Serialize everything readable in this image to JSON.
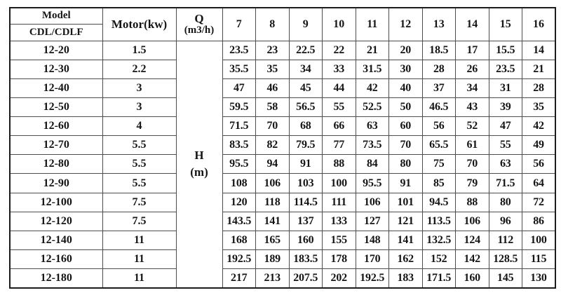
{
  "table": {
    "header": {
      "model_label": "Model",
      "model_series_label": "CDL/CDLF",
      "motor_label": "Motor(kw)",
      "q_unit_line1": "Q",
      "q_unit_line2": "(m3/h)",
      "flow_columns": [
        "7",
        "8",
        "9",
        "10",
        "11",
        "12",
        "13",
        "14",
        "15",
        "16"
      ]
    },
    "head_unit": {
      "line1": "H",
      "line2": "(m)"
    },
    "rows": [
      {
        "model": "12-20",
        "motor": "1.5",
        "heads": [
          "23.5",
          "23",
          "22.5",
          "22",
          "21",
          "20",
          "18.5",
          "17",
          "15.5",
          "14"
        ]
      },
      {
        "model": "12-30",
        "motor": "2.2",
        "heads": [
          "35.5",
          "35",
          "34",
          "33",
          "31.5",
          "30",
          "28",
          "26",
          "23.5",
          "21"
        ]
      },
      {
        "model": "12-40",
        "motor": "3",
        "heads": [
          "47",
          "46",
          "45",
          "44",
          "42",
          "40",
          "37",
          "34",
          "31",
          "28"
        ]
      },
      {
        "model": "12-50",
        "motor": "3",
        "heads": [
          "59.5",
          "58",
          "56.5",
          "55",
          "52.5",
          "50",
          "46.5",
          "43",
          "39",
          "35"
        ]
      },
      {
        "model": "12-60",
        "motor": "4",
        "heads": [
          "71.5",
          "70",
          "68",
          "66",
          "63",
          "60",
          "56",
          "52",
          "47",
          "42"
        ]
      },
      {
        "model": "12-70",
        "motor": "5.5",
        "heads": [
          "83.5",
          "82",
          "79.5",
          "77",
          "73.5",
          "70",
          "65.5",
          "61",
          "55",
          "49"
        ]
      },
      {
        "model": "12-80",
        "motor": "5.5",
        "heads": [
          "95.5",
          "94",
          "91",
          "88",
          "84",
          "80",
          "75",
          "70",
          "63",
          "56"
        ]
      },
      {
        "model": "12-90",
        "motor": "5.5",
        "heads": [
          "108",
          "106",
          "103",
          "100",
          "95.5",
          "91",
          "85",
          "79",
          "71.5",
          "64"
        ]
      },
      {
        "model": "12-100",
        "motor": "7.5",
        "heads": [
          "120",
          "118",
          "114.5",
          "111",
          "106",
          "101",
          "94.5",
          "88",
          "80",
          "72"
        ]
      },
      {
        "model": "12-120",
        "motor": "7.5",
        "heads": [
          "143.5",
          "141",
          "137",
          "133",
          "127",
          "121",
          "113.5",
          "106",
          "96",
          "86"
        ]
      },
      {
        "model": "12-140",
        "motor": "11",
        "heads": [
          "168",
          "165",
          "160",
          "155",
          "148",
          "141",
          "132.5",
          "124",
          "112",
          "100"
        ]
      },
      {
        "model": "12-160",
        "motor": "11",
        "heads": [
          "192.5",
          "189",
          "183.5",
          "178",
          "170",
          "162",
          "152",
          "142",
          "128.5",
          "115"
        ]
      },
      {
        "model": "12-180",
        "motor": "11",
        "heads": [
          "217",
          "213",
          "207.5",
          "202",
          "192.5",
          "183",
          "171.5",
          "160",
          "145",
          "130"
        ]
      }
    ],
    "colors": {
      "background": "#ffffff",
      "text": "#151515",
      "inner_border": "#4d4d4d",
      "outer_border": "#1c1c1c"
    }
  }
}
